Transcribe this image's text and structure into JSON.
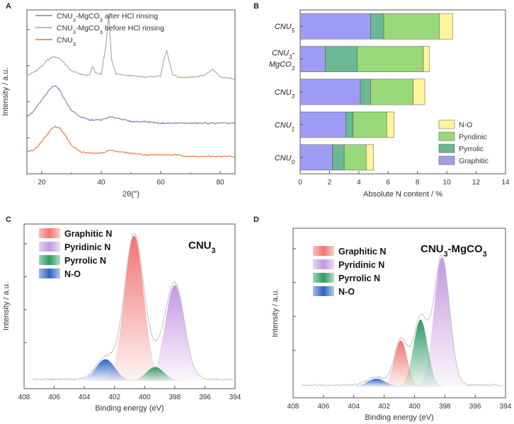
{
  "chart_data": [
    {
      "id": "A",
      "type": "line",
      "panel_label": "A",
      "title": "",
      "xlabel": "2θ(°)",
      "ylabel": "Intensity / a.u.",
      "xlim": [
        15,
        85
      ],
      "xticks": [
        20,
        40,
        60,
        80
      ],
      "xtick_labels": [
        "20",
        "40",
        "60",
        "80"
      ],
      "legend": [
        {
          "label": "CNU₃-MgCO₃ after HCl rinsing",
          "color": "#8c8c8c"
        },
        {
          "label": "CNU₃-MgCO₃ before HCl rinsing",
          "color": "#a2aa92"
        },
        {
          "label": "CNU₃",
          "color": "#e8732a"
        }
      ],
      "series": [
        {
          "name": "CNU₃-MgCO₃ before HCl rinsing",
          "color": "#a2aa92",
          "x": [
            15,
            18,
            20,
            22,
            24,
            26,
            28,
            30,
            33,
            36,
            37,
            38,
            40,
            41.5,
            42.5,
            43.5,
            45,
            50,
            55,
            60,
            61,
            62,
            63,
            64,
            66,
            70,
            74,
            76,
            77.5,
            78.5,
            80,
            85
          ],
          "y": [
            0.62,
            0.65,
            0.68,
            0.72,
            0.74,
            0.73,
            0.69,
            0.65,
            0.63,
            0.62,
            0.68,
            0.64,
            0.63,
            0.8,
            1.0,
            0.72,
            0.63,
            0.62,
            0.61,
            0.62,
            0.72,
            0.78,
            0.7,
            0.63,
            0.61,
            0.61,
            0.62,
            0.64,
            0.66,
            0.64,
            0.61,
            0.6
          ]
        },
        {
          "name": "CNU₃-MgCO₃ after HCl rinsing",
          "color": "#6e7fae",
          "x": [
            15,
            17,
            19,
            21,
            23,
            24.5,
            26,
            28,
            30,
            33,
            36,
            40,
            43,
            46,
            50,
            55,
            60,
            65,
            70,
            75,
            80,
            85
          ],
          "y": [
            0.36,
            0.39,
            0.44,
            0.49,
            0.54,
            0.56,
            0.53,
            0.46,
            0.4,
            0.36,
            0.34,
            0.34,
            0.36,
            0.35,
            0.33,
            0.33,
            0.32,
            0.32,
            0.32,
            0.32,
            0.32,
            0.32
          ]
        },
        {
          "name": "CNU₃",
          "color": "#e8732a",
          "x": [
            15,
            17,
            19,
            21,
            23,
            24.5,
            26,
            28,
            30,
            33,
            36,
            40,
            43,
            46,
            50,
            55,
            60,
            65,
            70,
            75,
            80,
            85
          ],
          "y": [
            0.14,
            0.15,
            0.18,
            0.23,
            0.28,
            0.3,
            0.29,
            0.24,
            0.18,
            0.14,
            0.13,
            0.13,
            0.15,
            0.14,
            0.13,
            0.12,
            0.12,
            0.12,
            0.11,
            0.11,
            0.11,
            0.11
          ]
        }
      ]
    },
    {
      "id": "B",
      "type": "bar",
      "orientation": "horizontal",
      "stacked": true,
      "panel_label": "B",
      "xlabel": "Absolute N content / %",
      "ylabel": "",
      "xlim": [
        0,
        14
      ],
      "xticks": [
        0,
        2,
        4,
        6,
        8,
        10,
        12,
        14
      ],
      "categories": [
        "CNU₅",
        "CNU₃-MgCO₃",
        "CNU₃",
        "CNU₁",
        "CNU₀"
      ],
      "category_labels": [
        {
          "main": "CNU",
          "sub": "5"
        },
        {
          "main": "CNU",
          "sub": "3",
          "line2": "MgCO",
          "sub2": "3"
        },
        {
          "main": "CNU",
          "sub": "3"
        },
        {
          "main": "CNU",
          "sub": "1"
        },
        {
          "main": "CNU",
          "sub": "0"
        }
      ],
      "series": [
        {
          "name": "Graphitic",
          "color": "#9e9cf4",
          "values": [
            4.8,
            1.7,
            4.1,
            3.1,
            2.2
          ]
        },
        {
          "name": "Pyrrolic",
          "color": "#6cb795",
          "values": [
            0.9,
            2.2,
            0.7,
            0.5,
            0.8
          ]
        },
        {
          "name": "Pyridinic",
          "color": "#9ad97a",
          "values": [
            3.8,
            4.5,
            2.9,
            2.3,
            1.5
          ]
        },
        {
          "name": "N-O",
          "color": "#fff59a",
          "values": [
            0.9,
            0.4,
            0.8,
            0.5,
            0.5
          ]
        }
      ],
      "legend_order": [
        "N-O",
        "Pyridinic",
        "Pyrrolic",
        "Graphitic"
      ]
    },
    {
      "id": "C",
      "type": "area",
      "panel_label": "C",
      "title": "CNU₃",
      "title_main": "CNU",
      "title_sub": "3",
      "xlabel": "Binding energy (eV)",
      "ylabel": "Intensity / a.u.",
      "xlim": [
        408,
        394
      ],
      "xticks": [
        408,
        406,
        404,
        402,
        400,
        398,
        396,
        394
      ],
      "baseline": 0.05,
      "components": [
        {
          "name": "Graphitic N",
          "center": 400.7,
          "fwhm": 1.5,
          "height": 0.94,
          "color": "#f07470"
        },
        {
          "name": "Pyridinic N",
          "center": 398.0,
          "fwhm": 1.5,
          "height": 0.62,
          "color": "#c598e0"
        },
        {
          "name": "Pyrrolic N",
          "center": 399.3,
          "fwhm": 1.4,
          "height": 0.09,
          "color": "#2f9a62"
        },
        {
          "name": "N-O",
          "center": 402.6,
          "fwhm": 1.5,
          "height": 0.14,
          "color": "#2f63c6"
        }
      ]
    },
    {
      "id": "D",
      "type": "area",
      "panel_label": "D",
      "title": "CNU₃-MgCO₃",
      "title_main": "CNU",
      "title_sub": "3",
      "title_rest": "-MgCO",
      "title_sub2": "3",
      "xlabel": "Binding energy (eV)",
      "ylabel": "Intensity / a.u.",
      "xlim": [
        408,
        394
      ],
      "xticks": [
        408,
        406,
        404,
        402,
        400,
        398,
        396,
        394
      ],
      "baseline": 0.07,
      "components": [
        {
          "name": "Graphitic N",
          "center": 400.9,
          "fwhm": 1.0,
          "height": 0.29,
          "color": "#f07470"
        },
        {
          "name": "Pyridinic N",
          "center": 398.2,
          "fwhm": 1.2,
          "height": 0.81,
          "color": "#c598e0"
        },
        {
          "name": "Pyrrolic N",
          "center": 399.6,
          "fwhm": 1.1,
          "height": 0.42,
          "color": "#2f9a62"
        },
        {
          "name": "N-O",
          "center": 402.5,
          "fwhm": 1.4,
          "height": 0.05,
          "color": "#2f63c6"
        }
      ]
    }
  ]
}
